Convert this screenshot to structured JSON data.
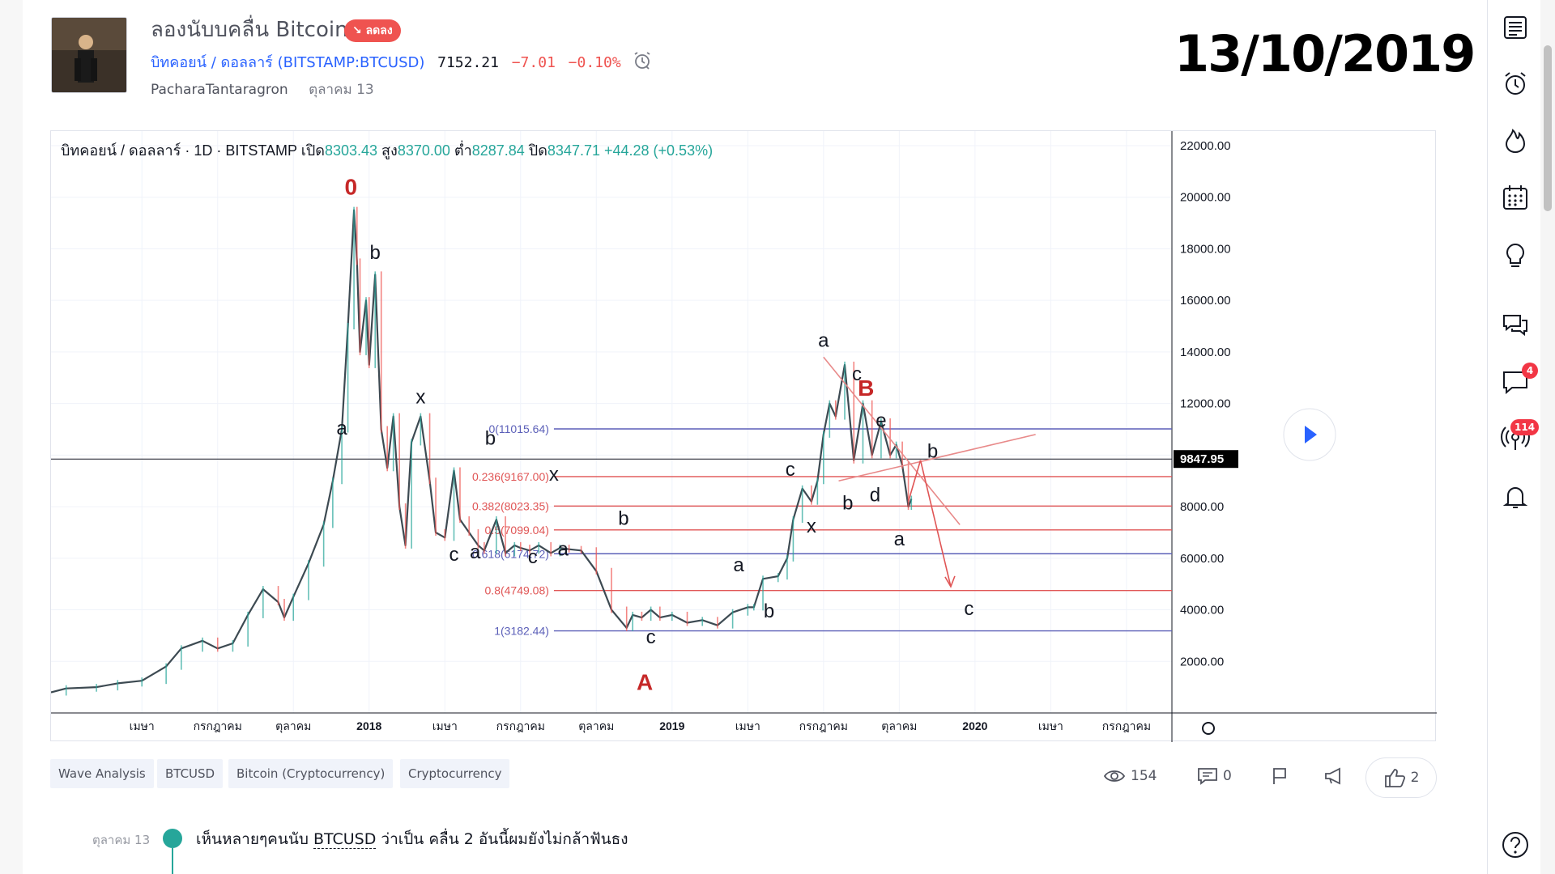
{
  "header": {
    "title": "ลองนับบคลื่น Bitcoin",
    "badge": "↘ ลดลง",
    "symbol_name": "บิทคอยน์ / ดอลลาร์",
    "symbol_code": "(BITSTAMP:BTCUSD)",
    "price": "7152.21",
    "change": "−7.01",
    "change_pct": "−0.10%",
    "author": "PacharaTantaragron",
    "published": "ตุลาคม 13"
  },
  "overlay_date": "13/10/2019",
  "chart_data": {
    "type": "line",
    "legend_title": "บิทคอยน์ / ดอลลาร์ · 1D · BITSTAMP",
    "ohlc": {
      "open_label": "เปิด",
      "open": "8303.43",
      "high_label": "สูง",
      "high": "8370.00",
      "low_label": "ต่ำ",
      "low": "8287.84",
      "close_label": "ปิด",
      "close": "8347.71",
      "change": "+44.28 (+0.53%)"
    },
    "last_price": "9847.95",
    "ylim": [
      0,
      22000
    ],
    "yticks": [
      "22000.00",
      "20000.00",
      "18000.00",
      "16000.00",
      "14000.00",
      "12000.00",
      "10000.00",
      "8000.00",
      "6000.00",
      "4000.00",
      "2000.00"
    ],
    "ytick_values": [
      22000,
      20000,
      18000,
      16000,
      14000,
      12000,
      10000,
      8000,
      6000,
      4000,
      2000
    ],
    "xticks": [
      {
        "label": "เมษา",
        "t": 2017.25,
        "bold": false
      },
      {
        "label": "กรกฎาคม",
        "t": 2017.5,
        "bold": false
      },
      {
        "label": "ตุลาคม",
        "t": 2017.75,
        "bold": false
      },
      {
        "label": "2018",
        "t": 2018.0,
        "bold": true
      },
      {
        "label": "เมษา",
        "t": 2018.25,
        "bold": false
      },
      {
        "label": "กรกฎาคม",
        "t": 2018.5,
        "bold": false
      },
      {
        "label": "ตุลาคม",
        "t": 2018.75,
        "bold": false
      },
      {
        "label": "2019",
        "t": 2019.0,
        "bold": true
      },
      {
        "label": "เมษา",
        "t": 2019.25,
        "bold": false
      },
      {
        "label": "กรกฎาคม",
        "t": 2019.5,
        "bold": false
      },
      {
        "label": "ตุลาคม",
        "t": 2019.75,
        "bold": false
      },
      {
        "label": "2020",
        "t": 2020.0,
        "bold": true
      },
      {
        "label": "เมษา",
        "t": 2020.25,
        "bold": false
      },
      {
        "label": "กรกฎาคม",
        "t": 2020.5,
        "bold": false
      }
    ],
    "xlim": [
      2016.95,
      2020.65
    ],
    "series": [
      {
        "x": [
          2016.95,
          2017.0,
          2017.1,
          2017.17,
          2017.25,
          2017.33,
          2017.38,
          2017.45,
          2017.5,
          2017.55,
          2017.6,
          2017.65,
          2017.7,
          2017.72,
          2017.75,
          2017.8,
          2017.85,
          2017.88,
          2017.91,
          2017.93,
          2017.95,
          2017.96,
          2017.97,
          2017.99,
          2018.0,
          2018.02,
          2018.04,
          2018.06,
          2018.08,
          2018.1,
          2018.12,
          2018.14,
          2018.17,
          2018.2,
          2018.22,
          2018.25,
          2018.28,
          2018.3,
          2018.33,
          2018.36,
          2018.38,
          2018.42,
          2018.45,
          2018.48,
          2018.5,
          2018.53,
          2018.56,
          2018.6,
          2018.63,
          2018.66,
          2018.7,
          2018.75,
          2018.8,
          2018.85,
          2018.87,
          2018.9,
          2018.93,
          2018.96,
          2019.0,
          2019.05,
          2019.1,
          2019.15,
          2019.2,
          2019.25,
          2019.27,
          2019.3,
          2019.35,
          2019.38,
          2019.4,
          2019.43,
          2019.46,
          2019.48,
          2019.5,
          2019.52,
          2019.54,
          2019.57,
          2019.6,
          2019.63,
          2019.66,
          2019.69,
          2019.72,
          2019.74,
          2019.76,
          2019.78,
          2019.79
        ],
        "values": [
          800,
          950,
          1000,
          1150,
          1250,
          1800,
          2500,
          2800,
          2500,
          2700,
          3800,
          4800,
          4300,
          3700,
          4500,
          5800,
          7300,
          9000,
          11000,
          15000,
          19500,
          17500,
          14000,
          16000,
          13500,
          17000,
          11000,
          9500,
          11500,
          8000,
          6500,
          10500,
          11500,
          9000,
          7000,
          6800,
          9400,
          7500,
          7000,
          6500,
          6300,
          7500,
          6200,
          6500,
          6400,
          6300,
          6500,
          6200,
          6400,
          6350,
          6300,
          5500,
          4000,
          3300,
          3800,
          3700,
          4000,
          3700,
          3800,
          3500,
          3600,
          3400,
          3900,
          4100,
          4100,
          5200,
          5300,
          6000,
          7500,
          8700,
          8200,
          9000,
          10800,
          12000,
          11500,
          13500,
          9800,
          12000,
          10000,
          11300,
          10000,
          10400,
          9600,
          8000,
          8300
        ]
      }
    ],
    "fib_levels": [
      {
        "label": "0(11015.64)",
        "value": 11015.64,
        "color": "#5b5fb8"
      },
      {
        "label": "0.236(9167.00)",
        "value": 9167.0,
        "color": "#e05555"
      },
      {
        "label": "0.382(8023.35)",
        "value": 8023.35,
        "color": "#e05555"
      },
      {
        "label": "0.5(7099.04)",
        "value": 7099.04,
        "color": "#e05555"
      },
      {
        "label": "0.618(6174.72)",
        "value": 6174.72,
        "color": "#5b5fb8"
      },
      {
        "label": "0.8(4749.08)",
        "value": 4749.08,
        "color": "#e05555"
      },
      {
        "label": "1(3182.44)",
        "value": 3182.44,
        "color": "#5b5fb8"
      }
    ],
    "wave_labels": [
      {
        "text": "0",
        "t": 2017.94,
        "v": 20100,
        "color": "#c62828",
        "big": true
      },
      {
        "text": "b",
        "t": 2018.02,
        "v": 17600,
        "color": "#131722",
        "big": false
      },
      {
        "text": "a",
        "t": 2017.91,
        "v": 10800,
        "color": "#131722",
        "big": false
      },
      {
        "text": "c",
        "t": 2018.28,
        "v": 5900,
        "color": "#131722",
        "big": false
      },
      {
        "text": "x",
        "t": 2018.17,
        "v": 12000,
        "color": "#131722",
        "big": false
      },
      {
        "text": "a",
        "t": 2018.35,
        "v": 6000,
        "color": "#131722",
        "big": false
      },
      {
        "text": "b",
        "t": 2018.4,
        "v": 10400,
        "color": "#131722",
        "big": false
      },
      {
        "text": "c",
        "t": 2018.54,
        "v": 5800,
        "color": "#131722",
        "big": false
      },
      {
        "text": "x",
        "t": 2018.61,
        "v": 9000,
        "color": "#131722",
        "big": false
      },
      {
        "text": "a",
        "t": 2018.64,
        "v": 6100,
        "color": "#131722",
        "big": false
      },
      {
        "text": "b",
        "t": 2018.84,
        "v": 7300,
        "color": "#131722",
        "big": false
      },
      {
        "text": "c",
        "t": 2018.93,
        "v": 2700,
        "color": "#131722",
        "big": false
      },
      {
        "text": "A",
        "t": 2018.91,
        "v": 900,
        "color": "#c62828",
        "big": true
      },
      {
        "text": "a",
        "t": 2019.22,
        "v": 5500,
        "color": "#131722",
        "big": false
      },
      {
        "text": "b",
        "t": 2019.32,
        "v": 3700,
        "color": "#131722",
        "big": false
      },
      {
        "text": "c",
        "t": 2019.39,
        "v": 9200,
        "color": "#131722",
        "big": false
      },
      {
        "text": "x",
        "t": 2019.46,
        "v": 7000,
        "color": "#131722",
        "big": false
      },
      {
        "text": "a",
        "t": 2019.5,
        "v": 14200,
        "color": "#131722",
        "big": false
      },
      {
        "text": "c",
        "t": 2019.61,
        "v": 12900,
        "color": "#131722",
        "big": false
      },
      {
        "text": "B",
        "t": 2019.64,
        "v": 12300,
        "color": "#c62828",
        "big": true
      },
      {
        "text": "e",
        "t": 2019.69,
        "v": 11100,
        "color": "#131722",
        "big": false
      },
      {
        "text": "b",
        "t": 2019.58,
        "v": 7900,
        "color": "#131722",
        "big": false
      },
      {
        "text": "d",
        "t": 2019.67,
        "v": 8200,
        "color": "#131722",
        "big": false
      },
      {
        "text": "b",
        "t": 2019.86,
        "v": 9900,
        "color": "#131722",
        "big": false
      },
      {
        "text": "a",
        "t": 2019.75,
        "v": 6500,
        "color": "#131722",
        "big": false
      },
      {
        "text": "c",
        "t": 2019.98,
        "v": 3800,
        "color": "#131722",
        "big": false
      }
    ],
    "trend_lines": [
      {
        "t1": 2019.5,
        "v1": 13800,
        "t2": 2019.95,
        "v2": 7300,
        "color": "#e88a8a"
      },
      {
        "t1": 2019.55,
        "v1": 9000,
        "t2": 2020.2,
        "v2": 10800,
        "color": "#e88a8a"
      },
      {
        "t1": 2019.82,
        "v1": 9800,
        "t2": 2019.92,
        "v2": 4900,
        "color": "#e05555",
        "arrow": true
      },
      {
        "t1": 2019.78,
        "v1": 8200,
        "t2": 2019.82,
        "v2": 9800,
        "color": "#e05555"
      }
    ]
  },
  "tags": [
    "Wave Analysis",
    "BTCUSD",
    "Bitcoin (Cryptocurrency)",
    "Cryptocurrency"
  ],
  "stats": {
    "views": "154",
    "comments": "0",
    "likes": "2"
  },
  "timeline": {
    "date": "ตุลาคม 13",
    "text_before": "เห็นหลายๆคนนับ ",
    "text_link": "BTCUSD",
    "text_after": " ว่าเป็น คลื่น 2 อันนี้ผมยังไม่กล้าฟันธง"
  },
  "sidebar": {
    "chat_badge": "4",
    "stream_badge": "114"
  },
  "colors": {
    "up": "#26a69a",
    "down": "#ef5350",
    "accent": "#2962ff"
  }
}
